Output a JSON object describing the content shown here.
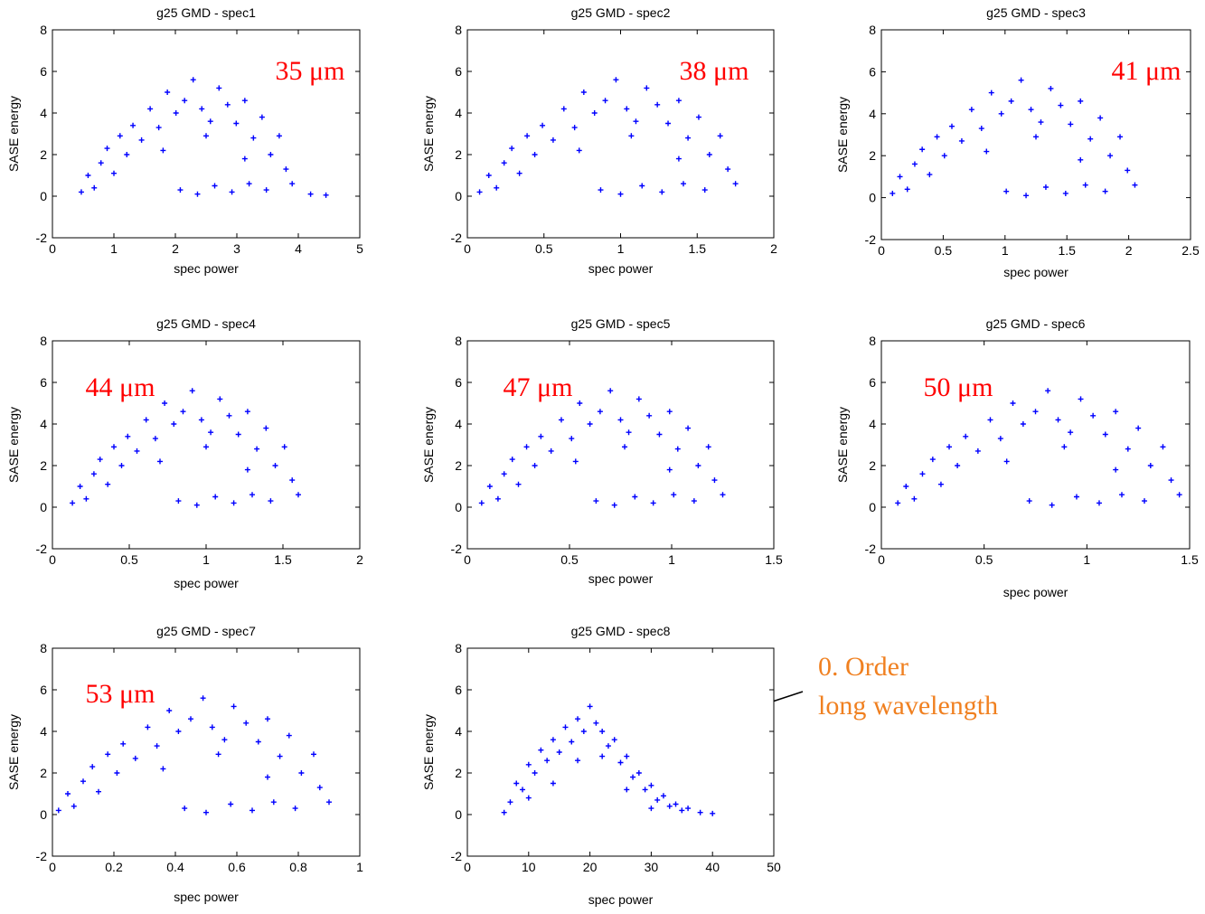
{
  "chart_data": [
    {
      "type": "scatter",
      "title": "g25 GMD - spec1",
      "xlabel": "spec power",
      "ylabel": "SASE energy",
      "color": "#0000ff",
      "marker": "+",
      "annotation": "35 μm",
      "annotation_color": "#ff0000",
      "xlim": [
        0,
        5
      ],
      "ylim": [
        -2,
        8
      ],
      "xticks": [
        0,
        1,
        2,
        3,
        4,
        5
      ],
      "yticks": [
        -2,
        0,
        2,
        4,
        6,
        8
      ],
      "x": [
        0.47,
        0.58,
        0.68,
        0.79,
        0.89,
        1.0,
        1.1,
        1.21,
        1.31,
        1.45,
        1.59,
        1.73,
        1.87,
        2.01,
        2.15,
        2.29,
        2.43,
        2.57,
        2.71,
        2.85,
        2.99,
        3.13,
        3.27,
        3.41,
        3.55,
        3.69,
        3.8,
        3.9,
        1.8,
        2.5,
        3.13,
        2.08,
        2.36,
        2.64,
        2.92,
        3.2,
        3.48,
        4.2,
        4.45
      ],
      "y": [
        0.2,
        1.0,
        0.4,
        1.6,
        2.3,
        1.1,
        2.9,
        2.0,
        3.4,
        2.7,
        4.2,
        3.3,
        5.0,
        4.0,
        4.6,
        5.6,
        4.2,
        3.6,
        5.2,
        4.4,
        3.5,
        4.6,
        2.8,
        3.8,
        2.0,
        2.9,
        1.3,
        0.6,
        2.2,
        2.9,
        1.8,
        0.3,
        0.1,
        0.5,
        0.2,
        0.6,
        0.3,
        0.1,
        0.05
      ]
    },
    {
      "type": "scatter",
      "title": "g25 GMD - spec2",
      "xlabel": "spec power",
      "ylabel": "SASE energy",
      "color": "#0000ff",
      "marker": "+",
      "annotation": "38 μm",
      "annotation_color": "#ff0000",
      "xlim": [
        0,
        2
      ],
      "ylim": [
        -2,
        8
      ],
      "xticks": [
        0,
        0.5,
        1,
        1.5,
        2
      ],
      "yticks": [
        -2,
        0,
        2,
        4,
        6,
        8
      ],
      "x": [
        0.08,
        0.14,
        0.19,
        0.24,
        0.29,
        0.34,
        0.39,
        0.44,
        0.49,
        0.56,
        0.63,
        0.7,
        0.76,
        0.83,
        0.9,
        0.97,
        1.04,
        1.1,
        1.17,
        1.24,
        1.31,
        1.38,
        1.44,
        1.51,
        1.58,
        1.65,
        1.7,
        1.75,
        0.73,
        1.07,
        1.38,
        0.87,
        1.0,
        1.14,
        1.27,
        1.41,
        1.55
      ],
      "y": [
        0.2,
        1.0,
        0.4,
        1.6,
        2.3,
        1.1,
        2.9,
        2.0,
        3.4,
        2.7,
        4.2,
        3.3,
        5.0,
        4.0,
        4.6,
        5.6,
        4.2,
        3.6,
        5.2,
        4.4,
        3.5,
        4.6,
        2.8,
        3.8,
        2.0,
        2.9,
        1.3,
        0.6,
        2.2,
        2.9,
        1.8,
        0.3,
        0.1,
        0.5,
        0.2,
        0.6,
        0.3
      ]
    },
    {
      "type": "scatter",
      "title": "g25 GMD - spec3",
      "xlabel": "spec power",
      "ylabel": "SASE energy",
      "color": "#0000ff",
      "marker": "+",
      "annotation": "41 μm",
      "annotation_color": "#ff0000",
      "xlim": [
        0,
        2.5
      ],
      "ylim": [
        -2,
        8
      ],
      "xticks": [
        0,
        0.5,
        1,
        1.5,
        2,
        2.5
      ],
      "yticks": [
        -2,
        0,
        2,
        4,
        6,
        8
      ],
      "x": [
        0.09,
        0.15,
        0.21,
        0.27,
        0.33,
        0.39,
        0.45,
        0.51,
        0.57,
        0.65,
        0.73,
        0.81,
        0.89,
        0.97,
        1.05,
        1.13,
        1.21,
        1.29,
        1.37,
        1.45,
        1.53,
        1.61,
        1.69,
        1.77,
        1.85,
        1.93,
        1.99,
        2.05,
        0.85,
        1.25,
        1.61,
        1.01,
        1.17,
        1.33,
        1.49,
        1.65,
        1.81
      ],
      "y": [
        0.2,
        1.0,
        0.4,
        1.6,
        2.3,
        1.1,
        2.9,
        2.0,
        3.4,
        2.7,
        4.2,
        3.3,
        5.0,
        4.0,
        4.6,
        5.6,
        4.2,
        3.6,
        5.2,
        4.4,
        3.5,
        4.6,
        2.8,
        3.8,
        2.0,
        2.9,
        1.3,
        0.6,
        2.2,
        2.9,
        1.8,
        0.3,
        0.1,
        0.5,
        0.2,
        0.6,
        0.3
      ]
    },
    {
      "type": "scatter",
      "title": "g25 GMD - spec4",
      "xlabel": "spec power",
      "ylabel": "SASE energy",
      "color": "#0000ff",
      "marker": "+",
      "annotation": "44 μm",
      "annotation_color": "#ff0000",
      "xlim": [
        0,
        2
      ],
      "ylim": [
        -2,
        8
      ],
      "xticks": [
        0,
        0.5,
        1,
        1.5,
        2
      ],
      "yticks": [
        -2,
        0,
        2,
        4,
        6,
        8
      ],
      "x": [
        0.13,
        0.18,
        0.22,
        0.27,
        0.31,
        0.36,
        0.4,
        0.45,
        0.49,
        0.55,
        0.61,
        0.67,
        0.73,
        0.79,
        0.85,
        0.91,
        0.97,
        1.03,
        1.09,
        1.15,
        1.21,
        1.27,
        1.33,
        1.39,
        1.45,
        1.51,
        1.56,
        1.6,
        0.7,
        1.0,
        1.27,
        0.82,
        0.94,
        1.06,
        1.18,
        1.3,
        1.42
      ],
      "y": [
        0.2,
        1.0,
        0.4,
        1.6,
        2.3,
        1.1,
        2.9,
        2.0,
        3.4,
        2.7,
        4.2,
        3.3,
        5.0,
        4.0,
        4.6,
        5.6,
        4.2,
        3.6,
        5.2,
        4.4,
        3.5,
        4.6,
        2.8,
        3.8,
        2.0,
        2.9,
        1.3,
        0.6,
        2.2,
        2.9,
        1.8,
        0.3,
        0.1,
        0.5,
        0.2,
        0.6,
        0.3
      ]
    },
    {
      "type": "scatter",
      "title": "g25 GMD - spec5",
      "xlabel": "spec power",
      "ylabel": "SASE energy",
      "color": "#0000ff",
      "marker": "+",
      "annotation": "47 μm",
      "annotation_color": "#ff0000",
      "xlim": [
        0,
        1.5
      ],
      "ylim": [
        -2,
        8
      ],
      "xticks": [
        0,
        0.5,
        1,
        1.5
      ],
      "yticks": [
        -2,
        0,
        2,
        4,
        6,
        8
      ],
      "x": [
        0.07,
        0.11,
        0.15,
        0.18,
        0.22,
        0.25,
        0.29,
        0.33,
        0.36,
        0.41,
        0.46,
        0.51,
        0.55,
        0.6,
        0.65,
        0.7,
        0.75,
        0.79,
        0.84,
        0.89,
        0.94,
        0.99,
        1.03,
        1.08,
        1.13,
        1.18,
        1.21,
        1.25,
        0.53,
        0.77,
        0.99,
        0.63,
        0.72,
        0.82,
        0.91,
        1.01,
        1.11
      ],
      "y": [
        0.2,
        1.0,
        0.4,
        1.6,
        2.3,
        1.1,
        2.9,
        2.0,
        3.4,
        2.7,
        4.2,
        3.3,
        5.0,
        4.0,
        4.6,
        5.6,
        4.2,
        3.6,
        5.2,
        4.4,
        3.5,
        4.6,
        2.8,
        3.8,
        2.0,
        2.9,
        1.3,
        0.6,
        2.2,
        2.9,
        1.8,
        0.3,
        0.1,
        0.5,
        0.2,
        0.6,
        0.3
      ]
    },
    {
      "type": "scatter",
      "title": "g25 GMD - spec6",
      "xlabel": "spec power",
      "ylabel": "SASE energy",
      "color": "#0000ff",
      "marker": "+",
      "annotation": "50 μm",
      "annotation_color": "#ff0000",
      "xlim": [
        0,
        1.5
      ],
      "ylim": [
        -2,
        8
      ],
      "xticks": [
        0,
        0.5,
        1,
        1.5
      ],
      "yticks": [
        -2,
        0,
        2,
        4,
        6,
        8
      ],
      "x": [
        0.08,
        0.12,
        0.16,
        0.2,
        0.25,
        0.29,
        0.33,
        0.37,
        0.41,
        0.47,
        0.53,
        0.58,
        0.64,
        0.69,
        0.75,
        0.81,
        0.86,
        0.92,
        0.97,
        1.03,
        1.09,
        1.14,
        1.2,
        1.25,
        1.31,
        1.37,
        1.41,
        1.45,
        0.61,
        0.89,
        1.14,
        0.72,
        0.83,
        0.95,
        1.06,
        1.17,
        1.28
      ],
      "y": [
        0.2,
        1.0,
        0.4,
        1.6,
        2.3,
        1.1,
        2.9,
        2.0,
        3.4,
        2.7,
        4.2,
        3.3,
        5.0,
        4.0,
        4.6,
        5.6,
        4.2,
        3.6,
        5.2,
        4.4,
        3.5,
        4.6,
        2.8,
        3.8,
        2.0,
        2.9,
        1.3,
        0.6,
        2.2,
        2.9,
        1.8,
        0.3,
        0.1,
        0.5,
        0.2,
        0.6,
        0.3
      ]
    },
    {
      "type": "scatter",
      "title": "g25 GMD - spec7",
      "xlabel": "spec power",
      "ylabel": "SASE energy",
      "color": "#0000ff",
      "marker": "+",
      "annotation": "53 μm",
      "annotation_color": "#ff0000",
      "xlim": [
        0,
        1
      ],
      "ylim": [
        -2,
        8
      ],
      "xticks": [
        0,
        0.2,
        0.4,
        0.6,
        0.8,
        1
      ],
      "yticks": [
        -2,
        0,
        2,
        4,
        6,
        8
      ],
      "x": [
        0.02,
        0.05,
        0.07,
        0.1,
        0.13,
        0.15,
        0.18,
        0.21,
        0.23,
        0.27,
        0.31,
        0.34,
        0.38,
        0.41,
        0.45,
        0.49,
        0.52,
        0.56,
        0.59,
        0.63,
        0.67,
        0.7,
        0.74,
        0.77,
        0.81,
        0.85,
        0.87,
        0.9,
        0.36,
        0.54,
        0.7,
        0.43,
        0.5,
        0.58,
        0.65,
        0.72,
        0.79
      ],
      "y": [
        0.2,
        1.0,
        0.4,
        1.6,
        2.3,
        1.1,
        2.9,
        2.0,
        3.4,
        2.7,
        4.2,
        3.3,
        5.0,
        4.0,
        4.6,
        5.6,
        4.2,
        3.6,
        5.2,
        4.4,
        3.5,
        4.6,
        2.8,
        3.8,
        2.0,
        2.9,
        1.3,
        0.6,
        2.2,
        2.9,
        1.8,
        0.3,
        0.1,
        0.5,
        0.2,
        0.6,
        0.3
      ]
    },
    {
      "type": "scatter",
      "title": "g25 GMD - spec8",
      "xlabel": "spec power",
      "ylabel": "SASE energy",
      "color": "#0000ff",
      "marker": "+",
      "annotation": [
        "0. Order",
        "long wavelength"
      ],
      "annotation_color": "#f08020",
      "xlim": [
        0,
        50
      ],
      "ylim": [
        -2,
        8
      ],
      "xticks": [
        0,
        10,
        20,
        30,
        40,
        50
      ],
      "yticks": [
        -2,
        0,
        2,
        4,
        6,
        8
      ],
      "x": [
        6,
        7,
        8,
        9,
        10,
        11,
        12,
        13,
        14,
        15,
        16,
        17,
        18,
        19,
        20,
        21,
        22,
        23,
        24,
        25,
        26,
        27,
        28,
        29,
        30,
        31,
        32,
        33,
        34,
        35,
        36,
        38,
        40,
        10,
        14,
        18,
        22,
        26,
        30
      ],
      "y": [
        0.1,
        0.6,
        1.5,
        1.2,
        2.4,
        2.0,
        3.1,
        2.6,
        3.6,
        3.0,
        4.2,
        3.5,
        4.6,
        4.0,
        5.2,
        4.4,
        4.0,
        3.3,
        3.6,
        2.5,
        2.8,
        1.8,
        2.0,
        1.2,
        1.4,
        0.7,
        0.9,
        0.4,
        0.5,
        0.2,
        0.3,
        0.1,
        0.05,
        0.8,
        1.5,
        2.6,
        2.8,
        1.2,
        0.3
      ]
    }
  ]
}
